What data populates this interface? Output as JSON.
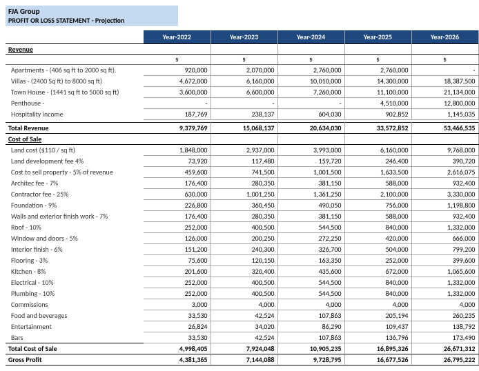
{
  "header": {
    "company": "FJA Group",
    "title": "PROFIT OR LOSS STATEMENT - Projection"
  },
  "colors": {
    "header_bg": "#c5d9f1",
    "year_bg": "#1f497d",
    "year_fg": "#ffffff",
    "grid": "#a8a8a8",
    "strong_border": "#000000"
  },
  "columns": [
    "Year-2022",
    "Year-2023",
    "Year-2024",
    "Year-2025",
    "Year-2026"
  ],
  "currency_symbol": "$",
  "sections": {
    "revenue": {
      "label": "Revenue",
      "rows": [
        {
          "label": "Apartments - (406 sq ft to 2000 sq ft).",
          "v": [
            "920,000",
            "2,070,000",
            "2,760,000",
            "2,760,000",
            "-"
          ]
        },
        {
          "label": "Villas - (2400 Sq ft) to 8000 sq ft)",
          "v": [
            "4,672,000",
            "6,160,000",
            "10,010,000",
            "14,300,000",
            "18,387,500"
          ]
        },
        {
          "label": "Town House - (1441 sq ft to 5000 sq ft)",
          "v": [
            "3,600,000",
            "6,600,000",
            "7,260,000",
            "11,100,000",
            "21,134,000"
          ]
        },
        {
          "label": "Penthouse -",
          "v": [
            "-",
            "-",
            "-",
            "4,510,000",
            "12,800,000"
          ]
        },
        {
          "label": "Hospitality income",
          "v": [
            "187,769",
            "238,137",
            "604,030",
            "902,852",
            "1,145,035"
          ]
        }
      ],
      "total": {
        "label": "Total Revenue",
        "v": [
          "9,379,769",
          "15,068,137",
          "20,634,030",
          "33,572,852",
          "53,466,535"
        ]
      }
    },
    "cost": {
      "label": "Cost of Sale",
      "rows": [
        {
          "label": "Land cost ($110 / sq ft)",
          "v": [
            "1,848,000",
            "2,937,000",
            "3,993,000",
            "6,160,000",
            "9,768,000"
          ]
        },
        {
          "label": "Land development fee 4%",
          "v": [
            "73,920",
            "117,480",
            "159,720",
            "246,400",
            "390,720"
          ]
        },
        {
          "label": "Cost to sell property - 5% of revenue",
          "v": [
            "459,600",
            "741,500",
            "1,001,500",
            "1,633,500",
            "2,616,075"
          ]
        },
        {
          "label": "Architec fee - 7%",
          "v": [
            "176,400",
            "280,350",
            "381,150",
            "588,000",
            "932,400"
          ]
        },
        {
          "label": "Contractor fee - 25%",
          "v": [
            "630,000",
            "1,001,250",
            "1,361,250",
            "2,100,000",
            "3,330,000"
          ]
        },
        {
          "label": "Foundation - 9%",
          "v": [
            "226,800",
            "360,450",
            "490,050",
            "756,000",
            "1,198,800"
          ]
        },
        {
          "label": "Walls and exterior finish work - 7%",
          "v": [
            "176,400",
            "280,350",
            "381,150",
            "588,000",
            "932,400"
          ]
        },
        {
          "label": "Roof - 10%",
          "v": [
            "252,000",
            "400,500",
            "544,500",
            "840,000",
            "1,332,000"
          ]
        },
        {
          "label": "Window and doors - 5%",
          "v": [
            "126,000",
            "200,250",
            "272,250",
            "420,000",
            "666,000"
          ]
        },
        {
          "label": "Interior finish - 6%",
          "v": [
            "151,200",
            "240,300",
            "326,700",
            "504,000",
            "799,200"
          ]
        },
        {
          "label": "Flooring - 3%",
          "v": [
            "75,600",
            "120,150",
            "163,350",
            "252,000",
            "399,600"
          ]
        },
        {
          "label": "Kitchen - 8%",
          "v": [
            "201,600",
            "320,400",
            "435,600",
            "672,000",
            "1,065,600"
          ]
        },
        {
          "label": "Electrical - 10%",
          "v": [
            "252,000",
            "400,500",
            "544,500",
            "840,000",
            "1,332,000"
          ]
        },
        {
          "label": "Plumbing - 10%",
          "v": [
            "252,000",
            "400,500",
            "544,500",
            "840,000",
            "1,332,000"
          ]
        },
        {
          "label": "Commissions",
          "v": [
            "3,000",
            "4,000",
            "4,000",
            "4,000",
            "4,000"
          ]
        },
        {
          "label": "Food and beverages",
          "v": [
            "33,530",
            "42,524",
            "107,863",
            "205,194",
            "260,235"
          ]
        },
        {
          "label": "Entertainment",
          "v": [
            "26,824",
            "34,020",
            "86,290",
            "109,437",
            "138,792"
          ]
        },
        {
          "label": "Bars",
          "v": [
            "33,530",
            "42,524",
            "107,863",
            "136,796",
            "173,490"
          ]
        }
      ],
      "total": {
        "label": "Total Cost of Sale",
        "v": [
          "4,998,405",
          "7,924,048",
          "10,905,235",
          "16,895,326",
          "26,671,312"
        ]
      }
    },
    "gross_profit": {
      "label": "Gross Profit",
      "v": [
        "4,381,365",
        "7,144,088",
        "9,728,795",
        "16,677,526",
        "26,795,222"
      ]
    }
  }
}
